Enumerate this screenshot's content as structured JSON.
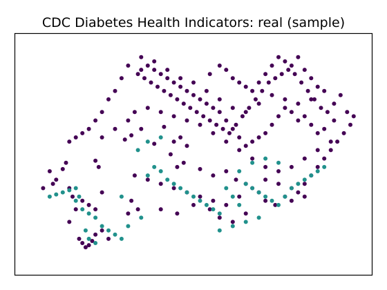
{
  "chart_data": {
    "type": "scatter",
    "title": "CDC Diabetes Health Indicators: real (sample)",
    "xlabel": "",
    "ylabel": "",
    "axis_ticks": false,
    "grid": false,
    "xlim": [
      0,
      100
    ],
    "ylim": [
      0,
      100
    ],
    "series": [
      {
        "color": "#440154",
        "points": [
          [
            6,
            42
          ],
          [
            10,
            43
          ],
          [
            11,
            46
          ],
          [
            20,
            47
          ],
          [
            21,
            44
          ],
          [
            22,
            32
          ],
          [
            29,
            57
          ],
          [
            31,
            59
          ],
          [
            34,
            62
          ],
          [
            38,
            55
          ],
          [
            41,
            63
          ],
          [
            44,
            56
          ],
          [
            46,
            58
          ],
          [
            48,
            54
          ],
          [
            43,
            50
          ],
          [
            45,
            44
          ],
          [
            47,
            46
          ],
          [
            52,
            43
          ],
          [
            56,
            40
          ],
          [
            60,
            42
          ],
          [
            63,
            38
          ],
          [
            66,
            36
          ],
          [
            70,
            32
          ],
          [
            72,
            28
          ],
          [
            75,
            26
          ],
          [
            78,
            30
          ],
          [
            80,
            28
          ],
          [
            82,
            32
          ],
          [
            84,
            36
          ],
          [
            86,
            40
          ],
          [
            88,
            44
          ],
          [
            90,
            48
          ],
          [
            92,
            52
          ],
          [
            94,
            56
          ],
          [
            96,
            60
          ],
          [
            98,
            64
          ],
          [
            93,
            66
          ],
          [
            90,
            62
          ],
          [
            88,
            60
          ],
          [
            86,
            64
          ],
          [
            84,
            68
          ],
          [
            82,
            66
          ],
          [
            80,
            70
          ],
          [
            78,
            72
          ],
          [
            76,
            68
          ],
          [
            74,
            64
          ],
          [
            72,
            60
          ],
          [
            70,
            58
          ],
          [
            68,
            56
          ],
          [
            66,
            54
          ],
          [
            64,
            58
          ],
          [
            62,
            62
          ],
          [
            60,
            66
          ],
          [
            58,
            70
          ],
          [
            56,
            72
          ],
          [
            54,
            74
          ],
          [
            52,
            76
          ],
          [
            50,
            78
          ],
          [
            48,
            80
          ],
          [
            46,
            82
          ],
          [
            44,
            84
          ],
          [
            42,
            86
          ],
          [
            40,
            88
          ],
          [
            38,
            90
          ],
          [
            36,
            92
          ],
          [
            34,
            90
          ],
          [
            33,
            88
          ],
          [
            35,
            86
          ],
          [
            37,
            84
          ],
          [
            39,
            82
          ],
          [
            41,
            80
          ],
          [
            43,
            78
          ],
          [
            45,
            76
          ],
          [
            47,
            74
          ],
          [
            49,
            72
          ],
          [
            51,
            70
          ],
          [
            53,
            68
          ],
          [
            55,
            66
          ],
          [
            57,
            64
          ],
          [
            59,
            62
          ],
          [
            61,
            60
          ],
          [
            63,
            64
          ],
          [
            65,
            68
          ],
          [
            67,
            72
          ],
          [
            69,
            76
          ],
          [
            71,
            80
          ],
          [
            73,
            84
          ],
          [
            75,
            86
          ],
          [
            77,
            88
          ],
          [
            79,
            90
          ],
          [
            81,
            88
          ],
          [
            83,
            84
          ],
          [
            85,
            80
          ],
          [
            87,
            76
          ],
          [
            89,
            72
          ],
          [
            91,
            70
          ],
          [
            93,
            74
          ],
          [
            95,
            78
          ],
          [
            97,
            70
          ],
          [
            99,
            68
          ],
          [
            55,
            88
          ],
          [
            58,
            92
          ],
          [
            60,
            90
          ],
          [
            62,
            86
          ],
          [
            64,
            84
          ],
          [
            66,
            82
          ],
          [
            68,
            80
          ],
          [
            70,
            84
          ],
          [
            72,
            88
          ],
          [
            74,
            92
          ],
          [
            76,
            96
          ],
          [
            78,
            94
          ],
          [
            80,
            92
          ],
          [
            82,
            96
          ],
          [
            84,
            90
          ],
          [
            86,
            86
          ],
          [
            88,
            82
          ],
          [
            90,
            80
          ],
          [
            86,
            76
          ],
          [
            82,
            74
          ],
          [
            78,
            76
          ],
          [
            74,
            78
          ],
          [
            70,
            74
          ],
          [
            66,
            70
          ],
          [
            62,
            72
          ],
          [
            58,
            76
          ],
          [
            54,
            80
          ],
          [
            50,
            84
          ],
          [
            46,
            86
          ],
          [
            42,
            90
          ],
          [
            38,
            94
          ],
          [
            34,
            96
          ],
          [
            30,
            92
          ],
          [
            28,
            86
          ],
          [
            26,
            80
          ],
          [
            24,
            76
          ],
          [
            22,
            70
          ],
          [
            20,
            66
          ],
          [
            18,
            62
          ],
          [
            16,
            60
          ],
          [
            14,
            58
          ],
          [
            12,
            56
          ],
          [
            22,
            58
          ],
          [
            26,
            62
          ],
          [
            30,
            66
          ],
          [
            32,
            70
          ],
          [
            36,
            72
          ],
          [
            40,
            70
          ],
          [
            44,
            68
          ],
          [
            48,
            66
          ],
          [
            52,
            64
          ],
          [
            56,
            60
          ],
          [
            60,
            56
          ],
          [
            64,
            52
          ],
          [
            68,
            48
          ],
          [
            72,
            44
          ],
          [
            76,
            42
          ],
          [
            80,
            44
          ],
          [
            84,
            48
          ],
          [
            88,
            52
          ],
          [
            92,
            56
          ],
          [
            32,
            40
          ],
          [
            36,
            38
          ],
          [
            40,
            36
          ],
          [
            44,
            34
          ],
          [
            48,
            32
          ],
          [
            52,
            30
          ],
          [
            56,
            28
          ],
          [
            60,
            26
          ],
          [
            64,
            30
          ],
          [
            68,
            34
          ],
          [
            72,
            38
          ],
          [
            76,
            36
          ],
          [
            80,
            34
          ],
          [
            84,
            30
          ],
          [
            30,
            22
          ],
          [
            33,
            24
          ],
          [
            31,
            28
          ],
          [
            40,
            24
          ],
          [
            45,
            22
          ],
          [
            50,
            26
          ],
          [
            55,
            24
          ],
          [
            58,
            20
          ],
          [
            62,
            18
          ],
          [
            66,
            22
          ],
          [
            14,
            24
          ],
          [
            12,
            18
          ],
          [
            15,
            10
          ],
          [
            16,
            8
          ],
          [
            17,
            6
          ],
          [
            18,
            7
          ],
          [
            19,
            9
          ],
          [
            20,
            12
          ],
          [
            22,
            14
          ],
          [
            24,
            10
          ],
          [
            4,
            34
          ],
          [
            7,
            36
          ],
          [
            8,
            38
          ],
          [
            12,
            34
          ],
          [
            13,
            30
          ],
          [
            16,
            28
          ],
          [
            18,
            26
          ],
          [
            20,
            24
          ]
        ]
      },
      {
        "color": "#21918c",
        "points": [
          [
            6,
            30
          ],
          [
            8,
            31
          ],
          [
            10,
            32
          ],
          [
            12,
            33
          ],
          [
            14,
            34
          ],
          [
            15,
            30
          ],
          [
            14,
            28
          ],
          [
            16,
            24
          ],
          [
            18,
            22
          ],
          [
            20,
            20
          ],
          [
            22,
            16
          ],
          [
            24,
            14
          ],
          [
            26,
            12
          ],
          [
            28,
            10
          ],
          [
            30,
            16
          ],
          [
            20,
            8
          ],
          [
            18,
            10
          ],
          [
            17,
            14
          ],
          [
            28,
            30
          ],
          [
            34,
            20
          ],
          [
            36,
            40
          ],
          [
            38,
            44
          ],
          [
            40,
            42
          ],
          [
            42,
            38
          ],
          [
            44,
            36
          ],
          [
            46,
            34
          ],
          [
            48,
            32
          ],
          [
            50,
            30
          ],
          [
            52,
            28
          ],
          [
            54,
            26
          ],
          [
            56,
            24
          ],
          [
            58,
            22
          ],
          [
            60,
            34
          ],
          [
            62,
            30
          ],
          [
            64,
            26
          ],
          [
            66,
            36
          ],
          [
            68,
            34
          ],
          [
            70,
            32
          ],
          [
            72,
            30
          ],
          [
            74,
            28
          ],
          [
            76,
            26
          ],
          [
            78,
            30
          ],
          [
            80,
            34
          ],
          [
            82,
            36
          ],
          [
            84,
            38
          ],
          [
            86,
            40
          ],
          [
            88,
            42
          ],
          [
            90,
            44
          ],
          [
            70,
            20
          ],
          [
            66,
            18
          ],
          [
            62,
            16
          ],
          [
            58,
            14
          ],
          [
            64,
            42
          ],
          [
            68,
            46
          ],
          [
            72,
            48
          ],
          [
            76,
            46
          ],
          [
            33,
            52
          ],
          [
            36,
            56
          ],
          [
            40,
            58
          ]
        ]
      }
    ]
  }
}
